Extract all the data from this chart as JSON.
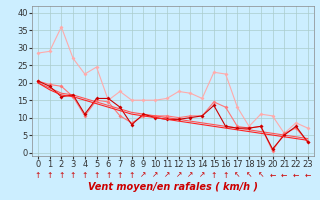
{
  "title": "",
  "xlabel": "Vent moyen/en rafales ( km/h )",
  "ylabel": "",
  "bg_color": "#cceeff",
  "grid_color": "#aacccc",
  "xlim": [
    -0.5,
    23.5
  ],
  "ylim": [
    -1,
    42
  ],
  "xticks": [
    0,
    1,
    2,
    3,
    4,
    5,
    6,
    7,
    8,
    9,
    10,
    11,
    12,
    13,
    14,
    15,
    16,
    17,
    18,
    19,
    20,
    21,
    22,
    23
  ],
  "yticks": [
    0,
    5,
    10,
    15,
    20,
    25,
    30,
    35,
    40
  ],
  "line1_color": "#ffaaaa",
  "line2_color": "#ff7777",
  "line3_color": "#ff5555",
  "line4_color": "#cc0000",
  "line5_color": "#ff2222",
  "line1_y": [
    28.5,
    29.0,
    36.0,
    27.0,
    22.5,
    24.5,
    15.0,
    17.5,
    15.0,
    15.0,
    15.0,
    15.5,
    17.5,
    17.0,
    15.5,
    23.0,
    22.5,
    13.0,
    7.5,
    11.0,
    10.5,
    5.5,
    8.5,
    7.0
  ],
  "line2_y": [
    20.5,
    19.5,
    19.0,
    16.0,
    10.5,
    15.0,
    14.5,
    10.5,
    8.5,
    10.5,
    10.5,
    10.5,
    10.0,
    10.5,
    10.5,
    14.5,
    13.0,
    7.5,
    7.0,
    7.5,
    0.5,
    5.5,
    7.0,
    3.0
  ],
  "line3_y": [
    20.0,
    18.5,
    17.0,
    16.5,
    15.5,
    14.5,
    13.5,
    12.5,
    11.5,
    11.0,
    10.5,
    10.0,
    9.5,
    9.0,
    8.5,
    8.0,
    7.5,
    7.0,
    6.5,
    6.0,
    5.5,
    5.0,
    4.5,
    4.0
  ],
  "line4_y": [
    20.5,
    19.0,
    16.0,
    16.5,
    11.0,
    15.5,
    15.5,
    13.0,
    8.0,
    11.0,
    10.0,
    9.5,
    9.5,
    10.0,
    10.5,
    13.5,
    7.5,
    7.0,
    7.0,
    7.5,
    1.0,
    5.0,
    7.5,
    3.0
  ],
  "line5_y": [
    20.0,
    18.0,
    16.5,
    16.0,
    15.0,
    14.0,
    13.0,
    12.0,
    11.0,
    10.5,
    10.0,
    9.5,
    9.0,
    8.5,
    8.0,
    7.5,
    7.0,
    6.5,
    6.0,
    5.5,
    5.0,
    4.5,
    4.0,
    3.5
  ],
  "arrows": [
    "↑",
    "↑",
    "↑",
    "↑",
    "↑",
    "↑",
    "↑",
    "↑",
    "↑",
    "↗",
    "↗",
    "↗",
    "↗",
    "↗",
    "↗",
    "↑",
    "↑",
    "↖",
    "↖",
    "↖",
    "←",
    "←",
    "←",
    "←"
  ],
  "xlabel_color": "#cc0000",
  "tick_color": "#333333",
  "font_size": 6,
  "xlabel_fontsize": 7
}
